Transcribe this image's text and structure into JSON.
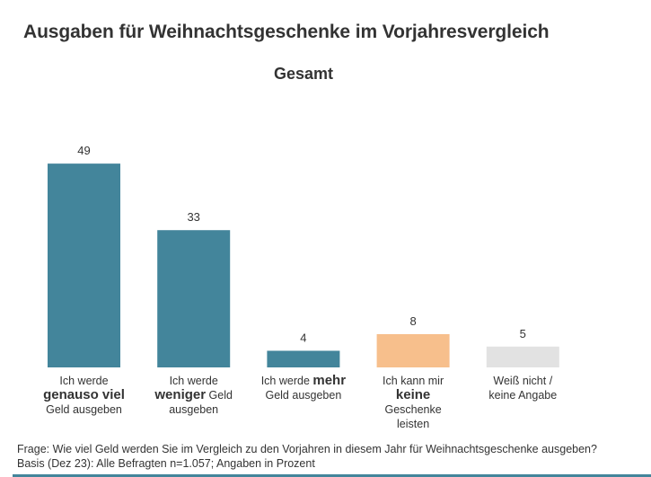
{
  "chart_data": {
    "type": "bar",
    "title": "Ausgaben für Weihnachtsgeschenke im Vorjahresvergleich",
    "subtitle": "Gesamt",
    "xlabel": "",
    "ylabel": "",
    "ylim": [
      0,
      50
    ],
    "grid": false,
    "categories": [
      "Ich werde genauso viel Geld ausgeben",
      "Ich werde weniger Geld ausgeben",
      "Ich werde mehr Geld ausgeben",
      "Ich kann mir keine Geschenke leisten",
      "Weiß nicht / keine Angabe"
    ],
    "category_lines": [
      [
        {
          "t": "Ich werde",
          "b": false
        },
        {
          "t": "genauso viel",
          "b": true
        },
        {
          "t": "Geld ausgeben",
          "b": false
        }
      ],
      [
        {
          "t": "Ich werde",
          "b": false
        },
        {
          "t": "weniger",
          "b": true,
          "suffix": " Geld"
        },
        {
          "t": "ausgeben",
          "b": false
        }
      ],
      [
        {
          "t": "Ich werde ",
          "b": false,
          "bold_suffix": "mehr"
        },
        {
          "t": "Geld ausgeben",
          "b": false
        }
      ],
      [
        {
          "t": "Ich kann mir",
          "b": false
        },
        {
          "t": "keine",
          "b": true
        },
        {
          "t": "Geschenke",
          "b": false
        },
        {
          "t": "leisten",
          "b": false
        }
      ],
      [
        {
          "t": "Weiß nicht /",
          "b": false
        },
        {
          "t": "keine Angabe",
          "b": false
        }
      ]
    ],
    "values": [
      49,
      33,
      4,
      8,
      5
    ],
    "colors": [
      "#43859b",
      "#43859b",
      "#43859b",
      "#f7bf8c",
      "#e2e2e2"
    ]
  },
  "footer": {
    "question": "Frage: Wie viel Geld werden Sie im Vergleich zu den Vorjahren in diesem Jahr für Weihnachtsgeschenke ausgeben?",
    "basis": "Basis (Dez 23): Alle Befragten n=1.057; Angaben in Prozent"
  },
  "accent_color": "#43859b"
}
